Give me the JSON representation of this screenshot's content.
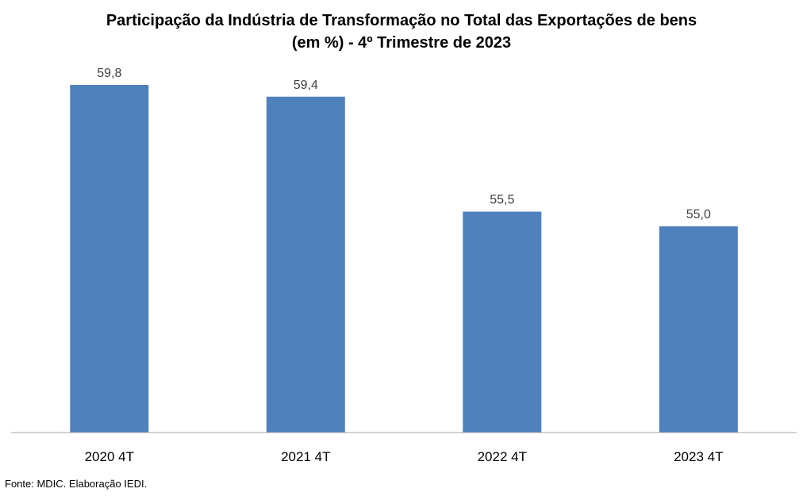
{
  "chart_data": {
    "type": "bar",
    "title_lines": [
      "Participação da Indústria de Transformação no Total das Exportações de bens",
      "(em %) - 4º Trimestre de 2023"
    ],
    "categories": [
      "2020 4T",
      "2021 4T",
      "2022 4T",
      "2023 4T"
    ],
    "values": [
      59.8,
      59.4,
      55.5,
      55.0
    ],
    "value_labels": [
      "59,8",
      "59,4",
      "55,5",
      "55,0"
    ],
    "xlabel": "",
    "ylabel": "",
    "ylim": [
      48.0,
      61.0
    ],
    "bar_color": "#4F81BD",
    "axis_color": "#A6A6A6",
    "grid": false,
    "legend": "none",
    "source": "Fonte: MDIC. Elaboração IEDI."
  }
}
